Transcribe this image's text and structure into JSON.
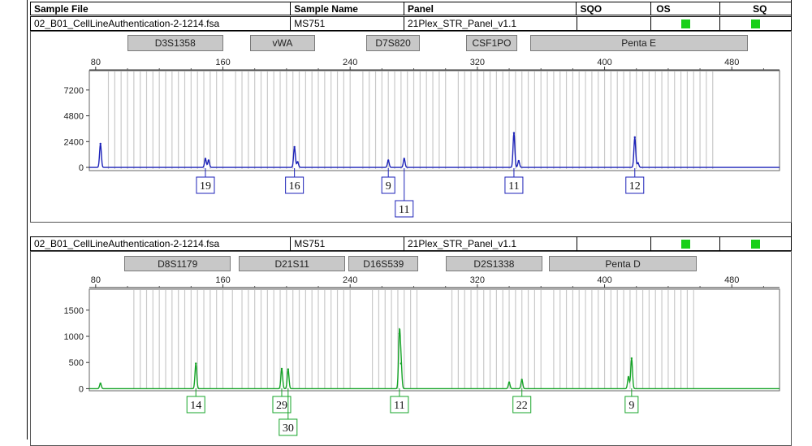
{
  "header": {
    "sample_file": "Sample File",
    "sample_name": "Sample Name",
    "panel": "Panel",
    "sqo": "SQO",
    "os": "OS",
    "sq": "SQ"
  },
  "status_colors": {
    "ok": "#19d019"
  },
  "rows": [
    {
      "sample_file": "02_B01_CellLineAuthentication-2-1214.fsa",
      "sample_name": "MS751",
      "panel": "21Plex_STR_Panel_v1.1",
      "sqo": ""
    },
    {
      "sample_file": "02_B01_CellLineAuthentication-2-1214.fsa",
      "sample_name": "MS751",
      "panel": "21Plex_STR_Panel_v1.1",
      "sqo": ""
    }
  ],
  "chart_data": [
    {
      "type": "line",
      "color": "#1c22b8",
      "xlim": [
        76,
        510
      ],
      "ylim": [
        -300,
        9000
      ],
      "x_ticks": [
        80,
        160,
        240,
        320,
        400,
        480
      ],
      "y_ticks": [
        0,
        2400,
        4800,
        7200
      ],
      "markers": [
        {
          "name": "D3S1358",
          "range": [
            100,
            160
          ]
        },
        {
          "name": "vWA",
          "range": [
            177,
            218
          ]
        },
        {
          "name": "D7S820",
          "range": [
            250,
            284
          ]
        },
        {
          "name": "CSF1PO",
          "range": [
            313,
            345
          ]
        },
        {
          "name": "Penta E",
          "range": [
            353,
            490
          ]
        }
      ],
      "peaks": [
        {
          "x": 83,
          "height": 2200
        },
        {
          "x": 149,
          "height": 800
        },
        {
          "x": 151,
          "height": 650
        },
        {
          "x": 205,
          "height": 1900
        },
        {
          "x": 207,
          "height": 500
        },
        {
          "x": 264,
          "height": 650
        },
        {
          "x": 274,
          "height": 800
        },
        {
          "x": 343,
          "height": 3200
        },
        {
          "x": 346,
          "height": 600
        },
        {
          "x": 419,
          "height": 2800
        },
        {
          "x": 421,
          "height": 400
        }
      ],
      "alleles": [
        {
          "label": "19",
          "x": 149
        },
        {
          "label": "16",
          "x": 205
        },
        {
          "label": "9",
          "x": 264
        },
        {
          "label": "11",
          "x": 274,
          "offset": true
        },
        {
          "label": "11",
          "x": 343
        },
        {
          "label": "12",
          "x": 419
        }
      ],
      "bins": [
        88,
        92,
        96,
        100,
        104,
        108,
        112,
        116,
        120,
        124,
        128,
        132,
        136,
        140,
        144,
        148,
        152,
        156,
        160,
        168,
        172,
        176,
        180,
        184,
        188,
        192,
        196,
        200,
        204,
        208,
        212,
        216,
        220,
        224,
        228,
        232,
        236,
        240,
        248,
        252,
        256,
        260,
        264,
        268,
        272,
        276,
        280,
        284,
        288,
        292,
        296,
        300,
        308,
        312,
        316,
        320,
        324,
        328,
        332,
        336,
        340,
        344,
        348,
        352,
        356,
        360,
        364,
        368,
        372,
        376,
        380,
        384,
        388,
        392,
        396,
        400,
        404,
        408,
        412,
        416,
        420,
        424,
        428,
        432,
        436,
        440,
        444,
        448,
        452,
        456,
        460,
        464,
        468
      ]
    },
    {
      "type": "line",
      "color": "#16a428",
      "xlim": [
        76,
        510
      ],
      "ylim": [
        -40,
        1900
      ],
      "x_ticks": [
        80,
        160,
        240,
        320,
        400,
        480
      ],
      "y_ticks": [
        0,
        500,
        1000,
        1500
      ],
      "markers": [
        {
          "name": "D8S1179",
          "range": [
            98,
            165
          ]
        },
        {
          "name": "D21S11",
          "range": [
            170,
            237
          ]
        },
        {
          "name": "D16S539",
          "range": [
            239,
            283
          ]
        },
        {
          "name": "D2S1338",
          "range": [
            300,
            361
          ]
        },
        {
          "name": "Penta D",
          "range": [
            365,
            458
          ]
        }
      ],
      "peaks": [
        {
          "x": 83,
          "height": 100
        },
        {
          "x": 143,
          "height": 480
        },
        {
          "x": 197,
          "height": 380
        },
        {
          "x": 201,
          "height": 370
        },
        {
          "x": 271,
          "height": 1050
        },
        {
          "x": 272,
          "height": 480
        },
        {
          "x": 340,
          "height": 120
        },
        {
          "x": 348,
          "height": 170
        },
        {
          "x": 417,
          "height": 580
        },
        {
          "x": 415,
          "height": 220
        }
      ],
      "alleles": [
        {
          "label": "14",
          "x": 143
        },
        {
          "label": "29",
          "x": 197
        },
        {
          "label": "30",
          "x": 201,
          "offset": true
        },
        {
          "label": "11",
          "x": 271
        },
        {
          "label": "22",
          "x": 348
        },
        {
          "label": "9",
          "x": 417
        }
      ],
      "bins": [
        104,
        108,
        112,
        116,
        120,
        124,
        128,
        132,
        136,
        140,
        144,
        148,
        152,
        156,
        160,
        166,
        172,
        176,
        180,
        184,
        188,
        192,
        196,
        200,
        204,
        208,
        212,
        216,
        220,
        224,
        228,
        232,
        236,
        240,
        254,
        258,
        262,
        266,
        270,
        274,
        278,
        282,
        304,
        308,
        312,
        316,
        320,
        324,
        328,
        332,
        336,
        340,
        344,
        348,
        352,
        356,
        360,
        368,
        372,
        376,
        380,
        384,
        388,
        392,
        396,
        400,
        404,
        408,
        412,
        416,
        420,
        424,
        428,
        432,
        436,
        440,
        444,
        448,
        452,
        456
      ]
    }
  ]
}
